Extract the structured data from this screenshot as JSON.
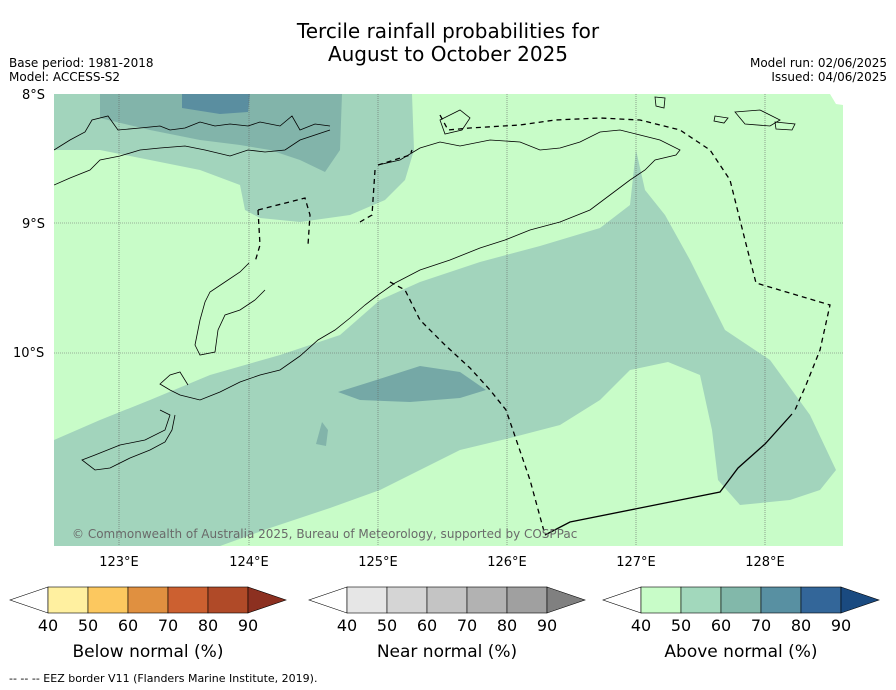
{
  "title_line1": "Tercile rainfall probabilities for",
  "title_line2": "August to October 2025",
  "meta_left": {
    "base_period": "Base period: 1981-2018",
    "model": "Model: ACCESS-S2"
  },
  "meta_right": {
    "model_run": "Model run: 02/06/2025",
    "issued": "Issued: 04/06/2025"
  },
  "map": {
    "lat_labels": [
      "8°S",
      "9°S",
      "10°S"
    ],
    "lon_labels": [
      "123°E",
      "124°E",
      "125°E",
      "126°E",
      "127°E",
      "128°E"
    ],
    "copyright": "© Commonwealth of Australia 2025, Bureau of Meteorology, supported by COSPPac"
  },
  "colorbars": [
    {
      "label": "Below normal (%)",
      "ticks": [
        "40",
        "50",
        "60",
        "70",
        "80",
        "90"
      ],
      "colors": [
        "#ffffff",
        "#fff0a0",
        "#fcc85f",
        "#e09040",
        "#cc6030",
        "#b04a28",
        "#8c3020"
      ]
    },
    {
      "label": "Near normal (%)",
      "ticks": [
        "40",
        "50",
        "60",
        "70",
        "80",
        "90"
      ],
      "colors": [
        "#ffffff",
        "#e6e6e6",
        "#d5d5d5",
        "#c4c4c4",
        "#b2b2b2",
        "#a0a0a0",
        "#808080"
      ]
    },
    {
      "label": "Above normal (%)",
      "ticks": [
        "40",
        "50",
        "60",
        "70",
        "80",
        "90"
      ],
      "colors": [
        "#ffffff",
        "#c8fcc8",
        "#a2d8bc",
        "#82b8aa",
        "#5890a2",
        "#336699",
        "#1a4a80"
      ]
    }
  ],
  "footer": "--  --  -- EEZ border V11 (Flanders Marine Institute, 2019)."
}
